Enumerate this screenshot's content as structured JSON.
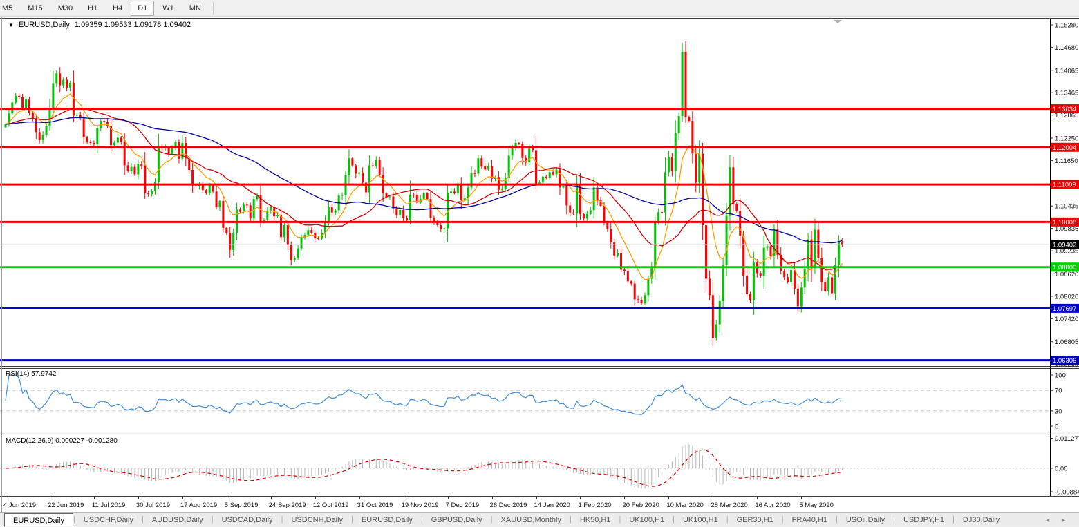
{
  "toolbar": {
    "timeframes": [
      "M5",
      "M15",
      "M30",
      "H1",
      "H4",
      "D1",
      "W1",
      "MN"
    ],
    "active": "D1"
  },
  "window_title": {
    "symbol": "EURUSD,Daily",
    "ohlc": "1.09359 1.09533 1.09178 1.09402"
  },
  "rsi_pane": {
    "label": "RSI(14)",
    "value": "57.9742",
    "axis_labels": [
      "100",
      "70",
      "30",
      "0"
    ]
  },
  "macd_pane": {
    "label": "MACD(12,26,9)",
    "value_main": "0.000227",
    "value_signal": "-0.001280",
    "axis_labels": [
      "0.011277",
      "0.00",
      "-0.00884"
    ]
  },
  "tabs": {
    "active_index": 0,
    "items": [
      "EURUSD,Daily",
      "USDCHF,Daily",
      "AUDUSD,Daily",
      "USDCAD,Daily",
      "USDCNH,Daily",
      "EURUSD,Daily",
      "GBPUSD,Daily",
      "XAUUSD,Monthly",
      "HK50,H1",
      "UK100,H1",
      "UK100,H1",
      "GER30,H1",
      "FRA40,H1",
      "USOil,Daily",
      "USDJPY,H1",
      "DJ30,Daily"
    ],
    "scroll_left": "◄",
    "scroll_right": "►"
  },
  "chart_data": {
    "type": "candlestick",
    "symbol": "EURUSD",
    "timeframe": "Daily",
    "last_ohlc": {
      "open": 1.09359,
      "high": 1.09533,
      "low": 1.09178,
      "close": 1.09402
    },
    "y_axis_ticks": [
      "1.15280",
      "1.14680",
      "1.14065",
      "1.13465",
      "1.12865",
      "1.12250",
      "1.11650",
      "1.11035",
      "1.10435",
      "1.09835",
      "1.09235",
      "1.08620",
      "1.08020",
      "1.07420",
      "1.06805",
      "1.06205"
    ],
    "x_tick_labels": [
      "4 Jun 2019",
      "22 Jun 2019",
      "11 Jul 2019",
      "30 Jul 2019",
      "17 Aug 2019",
      "5 Sep 2019",
      "24 Sep 2019",
      "12 Oct 2019",
      "31 Oct 2019",
      "19 Nov 2019",
      "7 Dec 2019",
      "26 Dec 2019",
      "14 Jan 2020",
      "1 Feb 2020",
      "20 Feb 2020",
      "10 Mar 2020",
      "28 Mar 2020",
      "16 Apr 2020",
      "5 May 2020"
    ],
    "x_tick_interval_bars": 13,
    "closes": [
      1.1262,
      1.1291,
      1.132,
      1.1338,
      1.1334,
      1.1305,
      1.1328,
      1.1292,
      1.1276,
      1.1241,
      1.122,
      1.1234,
      1.1257,
      1.1304,
      1.1372,
      1.1398,
      1.1366,
      1.1381,
      1.136,
      1.1373,
      1.1285,
      1.1287,
      1.1278,
      1.1227,
      1.1216,
      1.1212,
      1.1208,
      1.1252,
      1.1271,
      1.1268,
      1.1257,
      1.1206,
      1.1213,
      1.1226,
      1.1215,
      1.1152,
      1.1138,
      1.1148,
      1.1128,
      1.1156,
      1.115,
      1.1078,
      1.1075,
      1.1084,
      1.1108,
      1.1203,
      1.1198,
      1.1201,
      1.1183,
      1.1202,
      1.1214,
      1.117,
      1.1212,
      1.1171,
      1.114,
      1.1098,
      1.1096,
      1.1102,
      1.1086,
      1.1077,
      1.11,
      1.1082,
      1.104,
      1.1057,
      1.0985,
      1.0971,
      1.0926,
      1.0972,
      1.1034,
      1.1028,
      1.1047,
      1.1045,
      1.101,
      1.1062,
      1.1073,
      1.1003,
      1.1007,
      1.103,
      1.1041,
      1.1016,
      1.1018,
      1.096,
      1.0992,
      1.0941,
      1.0899,
      1.0905,
      1.093,
      1.0959,
      1.0966,
      1.0979,
      1.0972,
      1.0957,
      1.0956,
      1.0972,
      1.1003,
      1.104,
      1.1026,
      1.1032,
      1.1071,
      1.1073,
      1.1125,
      1.1171,
      1.1152,
      1.113,
      1.1133,
      1.1106,
      1.108,
      1.1152,
      1.115,
      1.1166,
      1.1127,
      1.1077,
      1.1068,
      1.1069,
      1.1037,
      1.1019,
      1.1033,
      1.1011,
      1.1005,
      1.1074,
      1.1073,
      1.1052,
      1.1062,
      1.1078,
      1.1062,
      1.1012,
      1.1001,
      1.0992,
      1.0981,
      1.0984,
      1.1078,
      1.1082,
      1.1077,
      1.1104,
      1.1059,
      1.1064,
      1.1093,
      1.1131,
      1.113,
      1.1171,
      1.1149,
      1.1141,
      1.115,
      1.1116,
      1.1121,
      1.1087,
      1.109,
      1.1118,
      1.1178,
      1.12,
      1.1212,
      1.121,
      1.1172,
      1.116,
      1.1197,
      1.1193,
      1.1103,
      1.1106,
      1.1122,
      1.1119,
      1.1134,
      1.1128,
      1.1141,
      1.1093,
      1.1097,
      1.1045,
      1.1026,
      1.1023,
      1.1101,
      1.1022,
      1.101,
      1.1022,
      1.1032,
      1.1093,
      1.106,
      1.1044,
      1.0998,
      1.0982,
      1.0946,
      1.0911,
      1.0917,
      1.0873,
      1.087,
      1.0842,
      1.0836,
      1.0794,
      1.0792,
      1.0783,
      1.0805,
      1.0849,
      1.0881,
      1.0999,
      1.1027,
      1.1026,
      1.1134,
      1.1175,
      1.1136,
      1.1238,
      1.1284,
      1.1456,
      1.1281,
      1.1271,
      1.1184,
      1.1106,
      1.1183,
      1.0992,
      1.0849,
      1.0805,
      1.069,
      1.0727,
      1.0789,
      1.0885,
      1.1017,
      1.1147,
      1.1048,
      1.103,
      1.0964,
      1.0857,
      1.0808,
      1.0791,
      1.0892,
      1.0864,
      1.0857,
      1.0932,
      1.0936,
      1.0911,
      1.0982,
      1.0913,
      1.087,
      1.0853,
      1.084,
      1.0872,
      1.0822,
      1.0775,
      1.0825,
      1.0876,
      1.0954,
      1.0877,
      1.098,
      1.0905,
      1.084,
      1.0816,
      1.0853,
      1.081,
      1.0885,
      1.0948,
      1.09402
    ],
    "hlines": [
      {
        "price": 1.13034,
        "label": "1.13034",
        "color": "#ee0000"
      },
      {
        "price": 1.12004,
        "label": "1.12004",
        "color": "#ee0000"
      },
      {
        "price": 1.11009,
        "label": "1.11009",
        "color": "#ee0000"
      },
      {
        "price": 1.10008,
        "label": "1.10008",
        "color": "#ee0000"
      },
      {
        "price": 1.088,
        "label": "1.08800",
        "color": "#00d400"
      },
      {
        "price": 1.07697,
        "label": "1.07697",
        "color": "#0000cc"
      },
      {
        "price": 1.06306,
        "label": "1.06306",
        "color": "#0000bb"
      }
    ],
    "current_price": {
      "price": 1.09402,
      "label": "1.09402",
      "line_color": "#c4c4c4",
      "box_color": "#000000"
    },
    "moving_averages": [
      {
        "period": 10,
        "method": "ema",
        "color": "#ff9c00"
      },
      {
        "period": 25,
        "method": "sma",
        "color": "#cc0000"
      },
      {
        "period": 60,
        "method": "sma",
        "color": "#000099"
      }
    ],
    "rsi": {
      "period": 14,
      "last": 57.9742,
      "range": [
        0,
        100
      ],
      "level_lines": [
        70,
        30
      ],
      "line_color": "#3e8ddd"
    },
    "macd": {
      "fast": 12,
      "slow": 26,
      "signal": 9,
      "last_main": 0.000227,
      "last_signal": -0.00128,
      "histogram_color": "#b4b4b4",
      "signal_color": "#dd0000"
    },
    "candle_up_color": "#00c400",
    "candle_down_color": "#ff0000",
    "grid": "off",
    "legend": "none",
    "main_pane_price_range": [
      1.0613,
      1.1545
    ]
  }
}
